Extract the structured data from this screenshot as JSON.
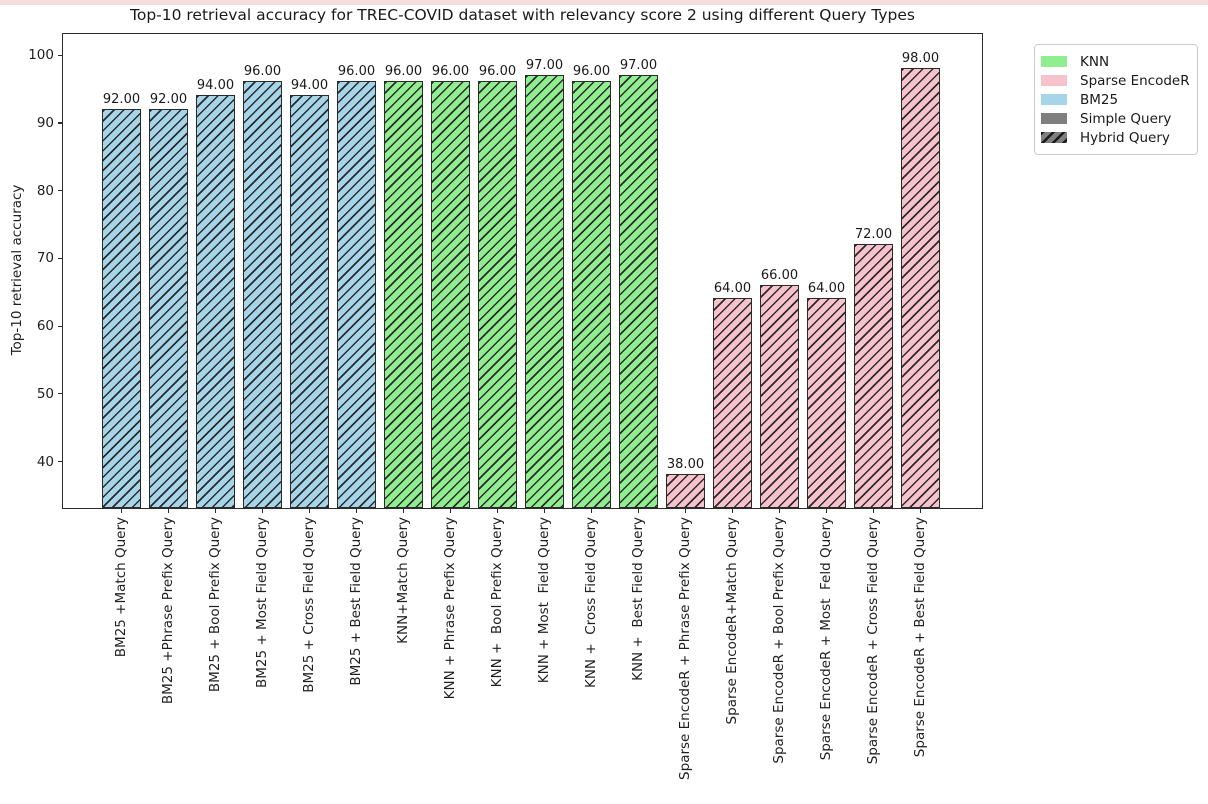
{
  "figure": {
    "top_strip_color": "#f5dcdd",
    "background": "#ffffff"
  },
  "chart_data": {
    "type": "bar",
    "title": "Top-10 retrieval accuracy for TREC-COVID dataset with relevancy score 2 using different Query Types",
    "xlabel": "",
    "ylabel": "Top-10 retrieval accuracy",
    "ylim": [
      33,
      103.3
    ],
    "yticks": [
      40,
      50,
      60,
      70,
      80,
      90,
      100
    ],
    "grid": false,
    "bar_hatch": "//",
    "hatch_color": "#2a2a2a",
    "value_label_decimals": 2,
    "categories": [
      "BM25 +Match Query",
      "BM25 +Phrase Prefix Query",
      "BM25 + Bool Prefix Query",
      "BM25 + Most Field Query",
      "BM25 + Cross Field Query",
      "BM25 + Best Field Query",
      "KNN+Match Query",
      "KNN + Phrase Prefix Query",
      "KNN +  Bool Prefix Query",
      "KNN + Most  Field Query",
      "KNN +  Cross Field Query",
      "KNN +  Best Field Query",
      "Sparse EncodeR + Phrase Prefix Query",
      "Sparse EncodeR+Match Query",
      "Sparse EncodeR + Bool Prefix Query",
      "Sparse EncodeR + Most  Feld Query",
      "Sparse EncodeR + Cross Field Query",
      "Sparse EncodeR + Best Field Query"
    ],
    "values": [
      92,
      92,
      94,
      96,
      94,
      96,
      96,
      96,
      96,
      97,
      96,
      97,
      38,
      64,
      66,
      64,
      72,
      98
    ],
    "series_group": [
      "BM25",
      "BM25",
      "BM25",
      "BM25",
      "BM25",
      "BM25",
      "KNN",
      "KNN",
      "KNN",
      "KNN",
      "KNN",
      "KNN",
      "Sparse EncodeR",
      "Sparse EncodeR",
      "Sparse EncodeR",
      "Sparse EncodeR",
      "Sparse EncodeR",
      "Sparse EncodeR"
    ],
    "group_colors": {
      "BM25": "#a6d4e8",
      "KNN": "#90ee90",
      "Sparse EncodeR": "#f7c2cc"
    },
    "legend": {
      "position": "outside-upper-right",
      "entries": [
        {
          "label": "KNN",
          "color": "#90ee90",
          "hatch": false
        },
        {
          "label": "Sparse EncodeR",
          "color": "#f7c2cc",
          "hatch": false
        },
        {
          "label": "BM25",
          "color": "#a6d4e8",
          "hatch": false
        },
        {
          "label": "Simple Query",
          "color": "#7f7f7f",
          "hatch": false
        },
        {
          "label": "Hybrid Query",
          "color": "#7f7f7f",
          "hatch": true
        }
      ]
    }
  }
}
